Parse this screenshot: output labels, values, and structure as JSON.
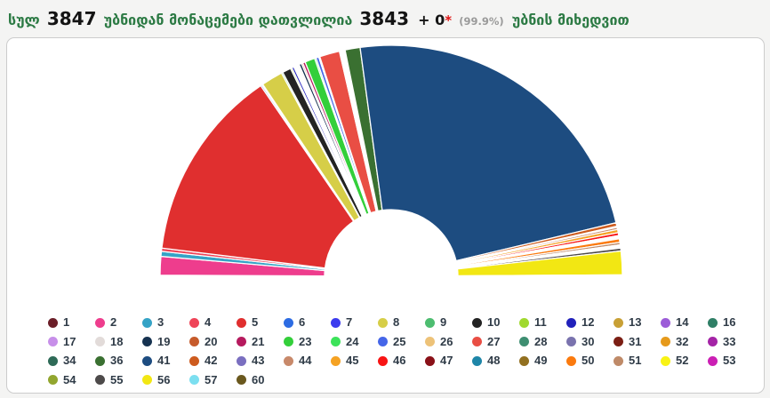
{
  "header": {
    "word_total": "სულ",
    "total_precincts": "3847",
    "word_counted_from": "უბნიდან მონაცემები დათვლილია",
    "counted_precincts": "3843",
    "plus_value": "+ 0",
    "asterisk": "*",
    "percent_counted": "(99.9%)",
    "word_by_precincts": "უბნის მიხედვით"
  },
  "colors": {
    "title_green": "#2c7a44",
    "title_black": "#141414",
    "asterisk_red": "#e01414",
    "percent_gray": "#9a9a9a",
    "page_bg": "#f4f4f3",
    "card_bg": "#ffffff",
    "card_border": "#cccccc",
    "legend_text": "#2f3b47",
    "slice_stroke": "#ffffff"
  },
  "chart_data": {
    "type": "half-donut",
    "title": "",
    "unit": "percent of counted party-list votes (estimated from slice angles)",
    "orientation": "semicircle; slices drawn from left (180°) to right (0°) in ascending party ballot number",
    "inner_radius_ratio": 0.29,
    "legend_position": "bottom-grid",
    "parties": [
      {
        "number": 1,
        "value": 0.15,
        "color": "#6b1e28"
      },
      {
        "number": 2,
        "value": 2.6,
        "color": "#ee3d8d"
      },
      {
        "number": 3,
        "value": 0.7,
        "color": "#35a3c6"
      },
      {
        "number": 4,
        "value": 0.45,
        "color": "#ef4458"
      },
      {
        "number": 5,
        "value": 27.0,
        "color": "#e02f2f"
      },
      {
        "number": 6,
        "value": 0.2,
        "color": "#2d6ce3"
      },
      {
        "number": 7,
        "value": 0.15,
        "color": "#3c3bee"
      },
      {
        "number": 8,
        "value": 3.0,
        "color": "#d6ce48"
      },
      {
        "number": 9,
        "value": 0.2,
        "color": "#4dbd70"
      },
      {
        "number": 10,
        "value": 1.2,
        "color": "#232323"
      },
      {
        "number": 11,
        "value": 0.2,
        "color": "#a0d92f"
      },
      {
        "number": 12,
        "value": 0.3,
        "color": "#2121bb"
      },
      {
        "number": 13,
        "value": 0.15,
        "color": "#c8a035"
      },
      {
        "number": 14,
        "value": 0.15,
        "color": "#9c5cd8"
      },
      {
        "number": 16,
        "value": 0.15,
        "color": "#2f7f66"
      },
      {
        "number": 17,
        "value": 0.15,
        "color": "#c78fe9"
      },
      {
        "number": 18,
        "value": 0.2,
        "color": "#e2dbd9"
      },
      {
        "number": 19,
        "value": 0.35,
        "color": "#163250"
      },
      {
        "number": 20,
        "value": 0.2,
        "color": "#c65b2b"
      },
      {
        "number": 21,
        "value": 0.35,
        "color": "#b61a5e"
      },
      {
        "number": 23,
        "value": 1.4,
        "color": "#33cf3a"
      },
      {
        "number": 24,
        "value": 0.2,
        "color": "#3ce35a"
      },
      {
        "number": 25,
        "value": 0.4,
        "color": "#4566e8"
      },
      {
        "number": 26,
        "value": 0.15,
        "color": "#edc278"
      },
      {
        "number": 27,
        "value": 2.8,
        "color": "#e94e44"
      },
      {
        "number": 28,
        "value": 0.15,
        "color": "#3e8e71"
      },
      {
        "number": 30,
        "value": 0.15,
        "color": "#7a73ae"
      },
      {
        "number": 31,
        "value": 0.1,
        "color": "#7b1e14"
      },
      {
        "number": 32,
        "value": 0.15,
        "color": "#e69a1b"
      },
      {
        "number": 33,
        "value": 0.1,
        "color": "#a424a6"
      },
      {
        "number": 34,
        "value": 0.15,
        "color": "#2e6a57"
      },
      {
        "number": 36,
        "value": 2.1,
        "color": "#3a7031"
      },
      {
        "number": 41,
        "value": 46.85,
        "color": "#1d4c80"
      },
      {
        "number": 42,
        "value": 0.5,
        "color": "#cd5b1e"
      },
      {
        "number": 43,
        "value": 0.15,
        "color": "#7a6fc0"
      },
      {
        "number": 44,
        "value": 0.3,
        "color": "#c8896a"
      },
      {
        "number": 45,
        "value": 0.45,
        "color": "#f5a223"
      },
      {
        "number": 46,
        "value": 0.4,
        "color": "#f81414"
      },
      {
        "number": 47,
        "value": 0.15,
        "color": "#8a1118"
      },
      {
        "number": 48,
        "value": 0.15,
        "color": "#1e86a8"
      },
      {
        "number": 49,
        "value": 0.15,
        "color": "#927020"
      },
      {
        "number": 50,
        "value": 0.5,
        "color": "#fb7a0e"
      },
      {
        "number": 51,
        "value": 0.35,
        "color": "#bf8a68"
      },
      {
        "number": 52,
        "value": 0.15,
        "color": "#f9f315"
      },
      {
        "number": 53,
        "value": 0.15,
        "color": "#cb1fb4"
      },
      {
        "number": 54,
        "value": 0.15,
        "color": "#92a62f"
      },
      {
        "number": 55,
        "value": 0.4,
        "color": "#4d4a4a"
      },
      {
        "number": 56,
        "value": 3.3,
        "color": "#f2e713"
      },
      {
        "number": 57,
        "value": 0.1,
        "color": "#7cdff0"
      },
      {
        "number": 60,
        "value": 0.1,
        "color": "#6a581e"
      }
    ]
  },
  "legend": {
    "columns": 15
  }
}
